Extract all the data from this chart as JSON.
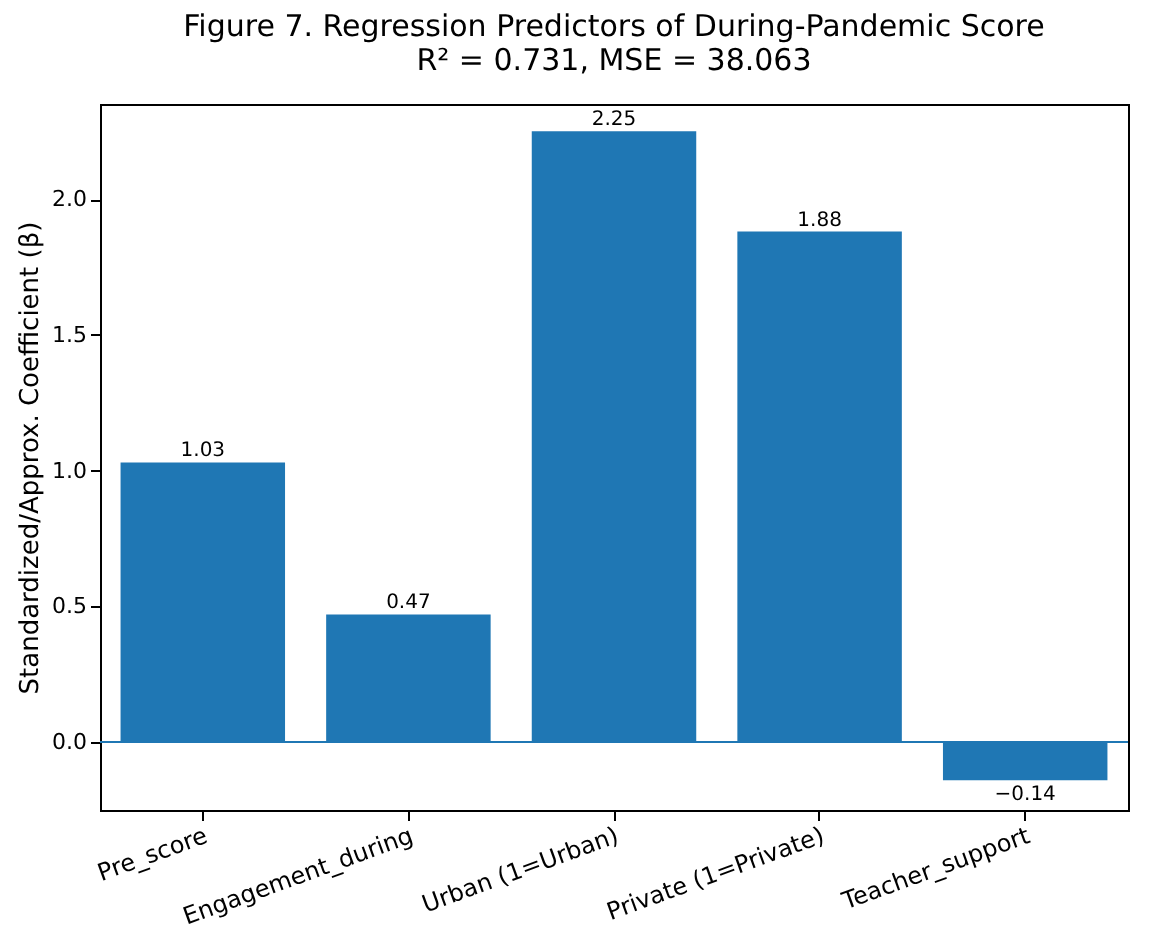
{
  "chart_data": {
    "type": "bar",
    "title": "Figure 7. Regression Predictors of During-Pandemic Score",
    "subtitle": "R² = 0.731, MSE = 38.063",
    "ylabel": "Standardized/Approx. Coefficient (β)",
    "categories": [
      "Pre_score",
      "Engagement_during",
      "Urban (1=Urban)",
      "Private (1=Private)",
      "Teacher_support"
    ],
    "values": [
      1.03,
      0.47,
      2.25,
      1.88,
      -0.14
    ],
    "color": "#1f77b4",
    "data_labels": true,
    "ylim": [
      -0.25,
      2.35
    ],
    "yticks": [
      {
        "value": 0,
        "label": "0.0"
      },
      {
        "value": 0.5,
        "label": "0.5"
      },
      {
        "value": 1,
        "label": "1.0"
      },
      {
        "value": 1.5,
        "label": "1.5"
      },
      {
        "value": 2,
        "label": "2.0"
      }
    ],
    "ref_lines": [
      {
        "axis": "y",
        "value": 0,
        "color": "#1f77b4"
      }
    ],
    "grid": false
  }
}
